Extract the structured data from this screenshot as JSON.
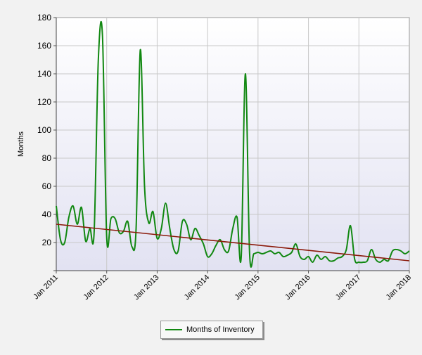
{
  "chart_data": {
    "type": "line",
    "title": "",
    "xlabel": "",
    "ylabel": "Months",
    "ylim": [
      0,
      180
    ],
    "xlim": [
      "2011-01",
      "2018-01"
    ],
    "y_ticks": [
      "",
      "20",
      "40",
      "60",
      "80",
      "100",
      "120",
      "140",
      "160",
      "180"
    ],
    "x_ticks": [
      "Jan 2011",
      "Jan 2012",
      "Jan 2013",
      "Jan 2014",
      "Jan 2015",
      "Jan 2016",
      "Jan 2017",
      "Jan 2018"
    ],
    "grid": true,
    "legend_position": "bottom-center",
    "colors": {
      "series": "#118811",
      "trend": "#8b1a0a",
      "plot_bg_top": "#ffffff",
      "plot_bg_bottom": "#e4e4f4"
    },
    "series": [
      {
        "name": "Months of Inventory",
        "x": [
          "2011-01",
          "2011-02",
          "2011-03",
          "2011-04",
          "2011-05",
          "2011-06",
          "2011-07",
          "2011-08",
          "2011-09",
          "2011-10",
          "2011-11",
          "2011-12",
          "2012-01",
          "2012-02",
          "2012-03",
          "2012-04",
          "2012-05",
          "2012-06",
          "2012-07",
          "2012-08",
          "2012-09",
          "2012-10",
          "2012-11",
          "2012-12",
          "2013-01",
          "2013-02",
          "2013-03",
          "2013-04",
          "2013-05",
          "2013-06",
          "2013-07",
          "2013-08",
          "2013-09",
          "2013-10",
          "2013-11",
          "2013-12",
          "2014-01",
          "2014-02",
          "2014-03",
          "2014-04",
          "2014-05",
          "2014-06",
          "2014-07",
          "2014-08",
          "2014-09",
          "2014-10",
          "2014-11",
          "2014-12",
          "2015-01",
          "2015-02",
          "2015-03",
          "2015-04",
          "2015-05",
          "2015-06",
          "2015-07",
          "2015-08",
          "2015-09",
          "2015-10",
          "2015-11",
          "2015-12",
          "2016-01",
          "2016-02",
          "2016-03",
          "2016-04",
          "2016-05",
          "2016-06",
          "2016-07",
          "2016-08",
          "2016-09",
          "2016-10",
          "2016-11",
          "2016-12",
          "2017-01",
          "2017-02",
          "2017-03",
          "2017-04",
          "2017-05",
          "2017-06",
          "2017-07",
          "2017-08",
          "2017-09",
          "2017-10",
          "2017-11",
          "2017-12",
          "2018-01"
        ],
        "values": [
          46,
          22,
          20,
          38,
          46,
          33,
          45,
          21,
          30,
          27,
          150,
          167,
          24,
          37,
          37,
          27,
          28,
          35,
          17,
          30,
          157,
          60,
          34,
          42,
          23,
          30,
          48,
          30,
          15,
          14,
          35,
          33,
          22,
          30,
          25,
          19,
          10,
          12,
          18,
          22,
          15,
          14,
          30,
          38,
          10,
          140,
          12,
          12,
          13,
          12,
          13,
          14,
          12,
          13,
          10,
          11,
          13,
          19,
          10,
          8,
          10,
          6,
          11,
          8,
          10,
          7,
          7,
          9,
          10,
          15,
          32,
          8,
          6,
          6,
          7,
          15,
          8,
          6,
          8,
          7,
          14,
          15,
          14,
          12,
          14
        ]
      },
      {
        "name": "",
        "type": "trend",
        "x": [
          "2011-01",
          "2018-01"
        ],
        "values": [
          33,
          7
        ]
      }
    ]
  }
}
